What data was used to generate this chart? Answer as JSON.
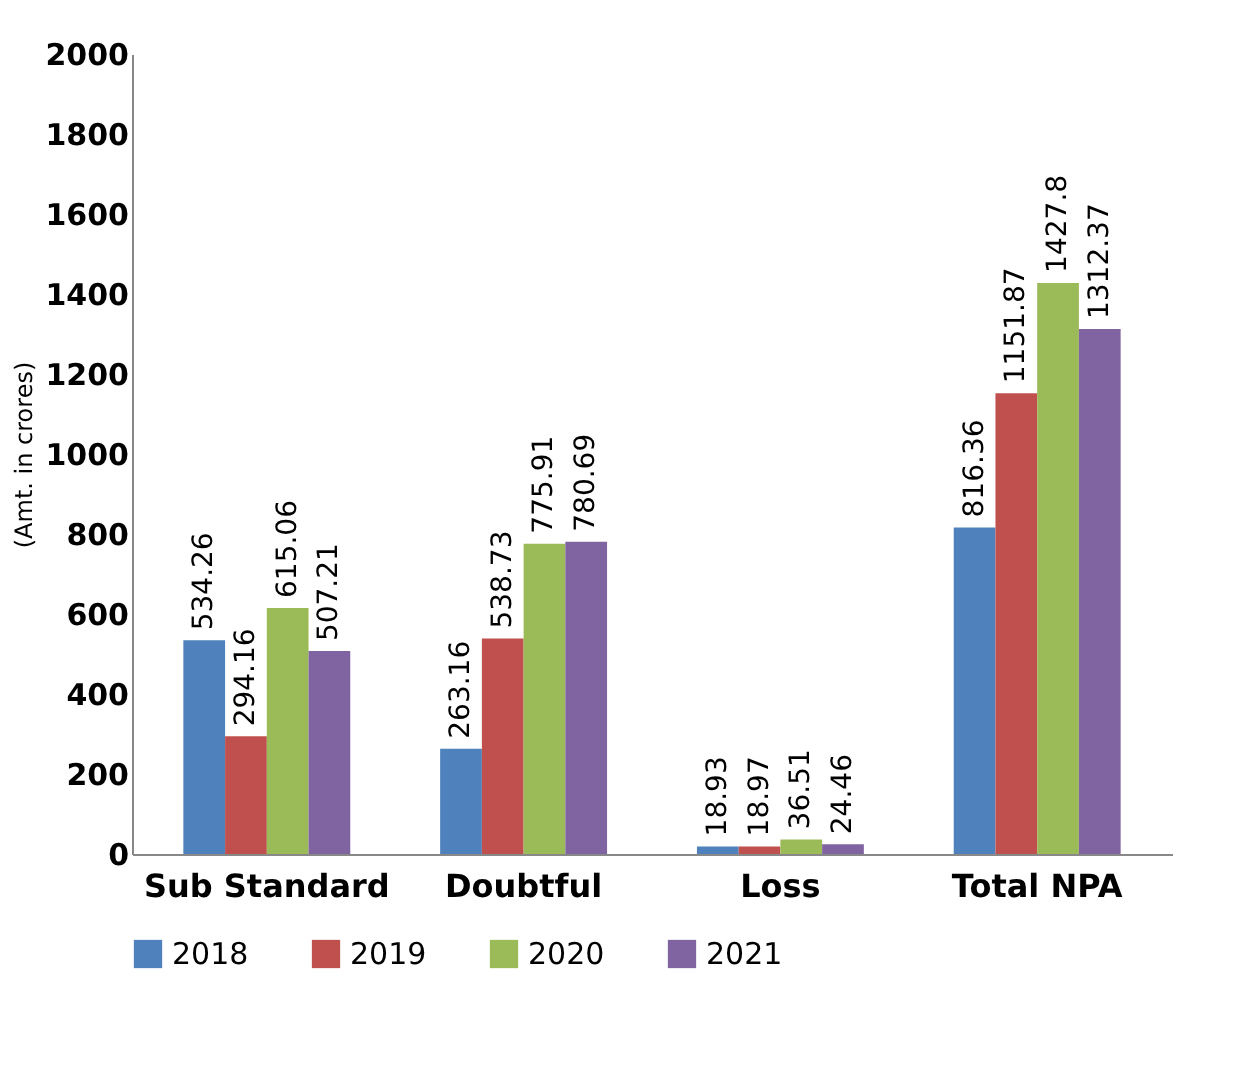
{
  "chart_data": {
    "type": "bar",
    "ylabel": "(Amt. in crores)",
    "categories": [
      "Sub Standard",
      "Doubtful",
      "Loss",
      "Total NPA"
    ],
    "series": [
      {
        "name": "2018",
        "color": "#4f81bd",
        "values": [
          534.26,
          263.16,
          18.93,
          816.36
        ],
        "value_labels": [
          "534.26",
          "263.16",
          "18.93",
          "816.36"
        ]
      },
      {
        "name": "2019",
        "color": "#c0504d",
        "values": [
          294.16,
          538.73,
          18.97,
          1151.87
        ],
        "value_labels": [
          "294.16",
          "538.73",
          "18.97",
          "1151.87"
        ]
      },
      {
        "name": "2020",
        "color": "#9bbb59",
        "values": [
          615.06,
          775.91,
          36.51,
          1427.8
        ],
        "value_labels": [
          "615.06",
          "775.91",
          "36.51",
          "1427.8"
        ]
      },
      {
        "name": "2021",
        "color": "#8064a2",
        "values": [
          507.21,
          780.69,
          24.46,
          1312.37
        ],
        "value_labels": [
          "507.21",
          "780.69",
          "24.46",
          "1312.37"
        ]
      }
    ],
    "ylim": [
      0,
      2000
    ],
    "yticks": [
      0,
      200,
      400,
      600,
      800,
      1000,
      1200,
      1400,
      1600,
      1800,
      2000
    ],
    "legend": "bottom"
  }
}
